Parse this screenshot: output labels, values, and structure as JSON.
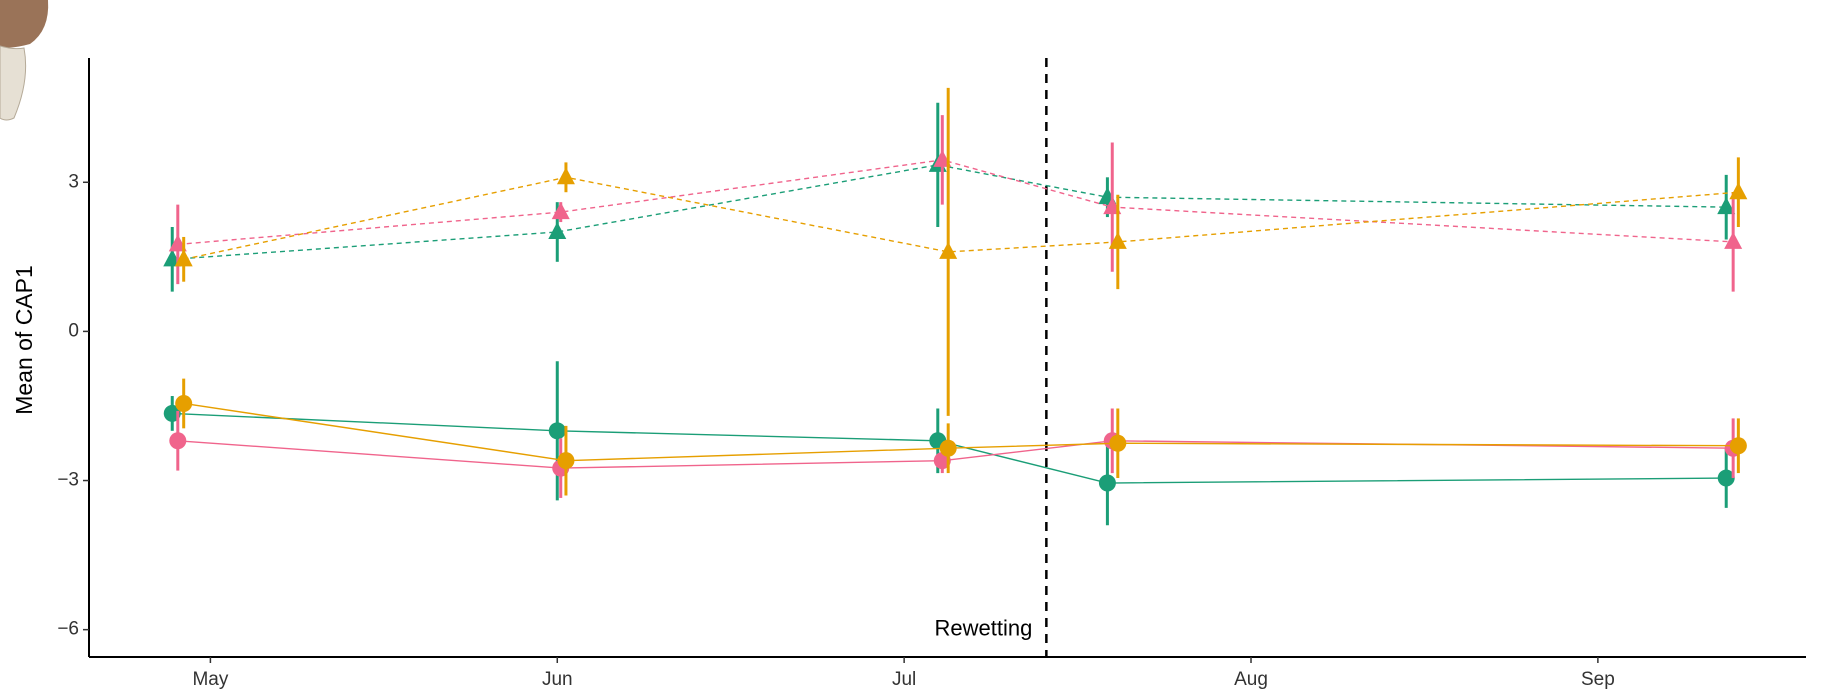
{
  "chart_data": {
    "type": "line",
    "y_label": "Mean of CAP1",
    "annotation": "Rewetting",
    "vline": 7.41,
    "xlim": [
      4.65,
      9.6
    ],
    "xticks": [
      {
        "value": 5,
        "label": "May"
      },
      {
        "value": 6,
        "label": "Jun"
      },
      {
        "value": 7,
        "label": "Jul"
      },
      {
        "value": 8,
        "label": "Aug"
      },
      {
        "value": 9,
        "label": "Sep"
      }
    ],
    "ylim": [
      -6.55,
      5.5
    ],
    "yticks": [
      {
        "value": -6,
        "label": "−6"
      },
      {
        "value": -3,
        "label": "−3"
      },
      0,
      3
    ],
    "grid": false,
    "series": [
      {
        "color": "#1b9e77",
        "marker": "circle",
        "dash": false,
        "x": [
          4.89,
          6.0,
          7.097,
          7.586,
          9.37
        ],
        "values": [
          -1.65,
          -2.0,
          -2.2,
          -3.05,
          -2.95
        ],
        "errors": [
          0.35,
          1.4,
          0.65,
          0.85,
          0.6
        ]
      },
      {
        "color": "#f0648c",
        "marker": "circle",
        "dash": false,
        "x": [
          4.906,
          6.01,
          7.11,
          7.6,
          9.39
        ],
        "values": [
          -2.2,
          -2.75,
          -2.6,
          -2.2,
          -2.35
        ],
        "errors": [
          0.6,
          0.6,
          0.25,
          0.65,
          0.6
        ]
      },
      {
        "color": "#e69f00",
        "marker": "circle",
        "dash": false,
        "x": [
          4.923,
          6.025,
          7.127,
          7.616,
          9.405
        ],
        "values": [
          -1.45,
          -2.6,
          -2.35,
          -2.25,
          -2.3
        ],
        "errors": [
          0.5,
          0.7,
          0.5,
          0.7,
          0.55
        ]
      },
      {
        "color": "#1b9e77",
        "marker": "triangle",
        "dash": true,
        "x": [
          4.89,
          6.0,
          7.097,
          7.586,
          9.37
        ],
        "values": [
          1.45,
          2.0,
          3.35,
          2.7,
          2.5
        ],
        "errors": [
          0.65,
          0.6,
          1.25,
          0.4,
          0.65
        ]
      },
      {
        "color": "#f0648c",
        "marker": "triangle",
        "dash": true,
        "x": [
          4.906,
          6.01,
          7.11,
          7.6,
          9.39
        ],
        "values": [
          1.75,
          2.4,
          3.45,
          2.5,
          1.8
        ],
        "errors": [
          0.8,
          0.2,
          0.9,
          1.3,
          1.0
        ]
      },
      {
        "color": "#e69f00",
        "marker": "triangle",
        "dash": true,
        "x": [
          4.923,
          6.025,
          7.127,
          7.616,
          9.405
        ],
        "values": [
          1.45,
          3.1,
          1.6,
          1.8,
          2.8
        ],
        "errors": [
          0.45,
          0.3,
          3.3,
          0.95,
          0.7
        ]
      }
    ]
  }
}
